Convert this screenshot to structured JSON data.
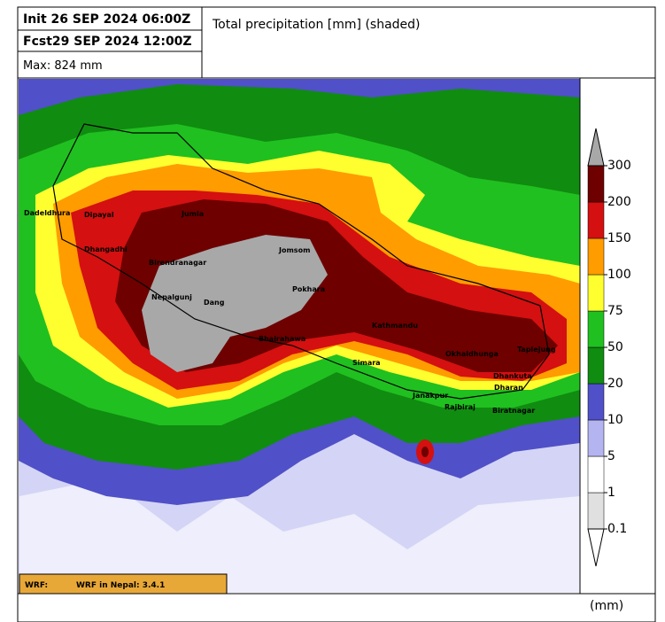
{
  "header": {
    "init": "Init  26 SEP 2024 06:00Z",
    "forecast": "Fcst29 SEP 2024 12:00Z",
    "max": "Max: 824 mm",
    "title": "Total precipitation [mm] (shaded)"
  },
  "cities": [
    "Dadeldhura",
    "Dipayal",
    "Jumla",
    "Dhangadhi",
    "Birendranagar",
    "Nepalgunj",
    "Dang",
    "Jomsom",
    "Pokhara",
    "Bhairahawa",
    "Kathmandu",
    "Simara",
    "Janakpur",
    "Rajbiraj",
    "Biratnagar",
    "Okhaldhunga",
    "Dhankuta",
    "Dharan",
    "Taplejung"
  ],
  "colorbar": {
    "ticks": [
      0.1,
      1,
      5,
      10,
      20,
      50,
      75,
      100,
      150,
      200,
      300
    ],
    "colors": [
      "#e0e0e0",
      "#ffffff",
      "#b4b4f0",
      "#5050c8",
      "#108c10",
      "#20c020",
      "#ffff30",
      "#ff9c00",
      "#d41010",
      "#6e0000"
    ],
    "over_color": "#a8a8a8",
    "under_color": "#ffffff",
    "unit": "(mm)"
  },
  "footer": {
    "label": "WRF:",
    "version": "WRF in Nepal: 3.4.1"
  }
}
